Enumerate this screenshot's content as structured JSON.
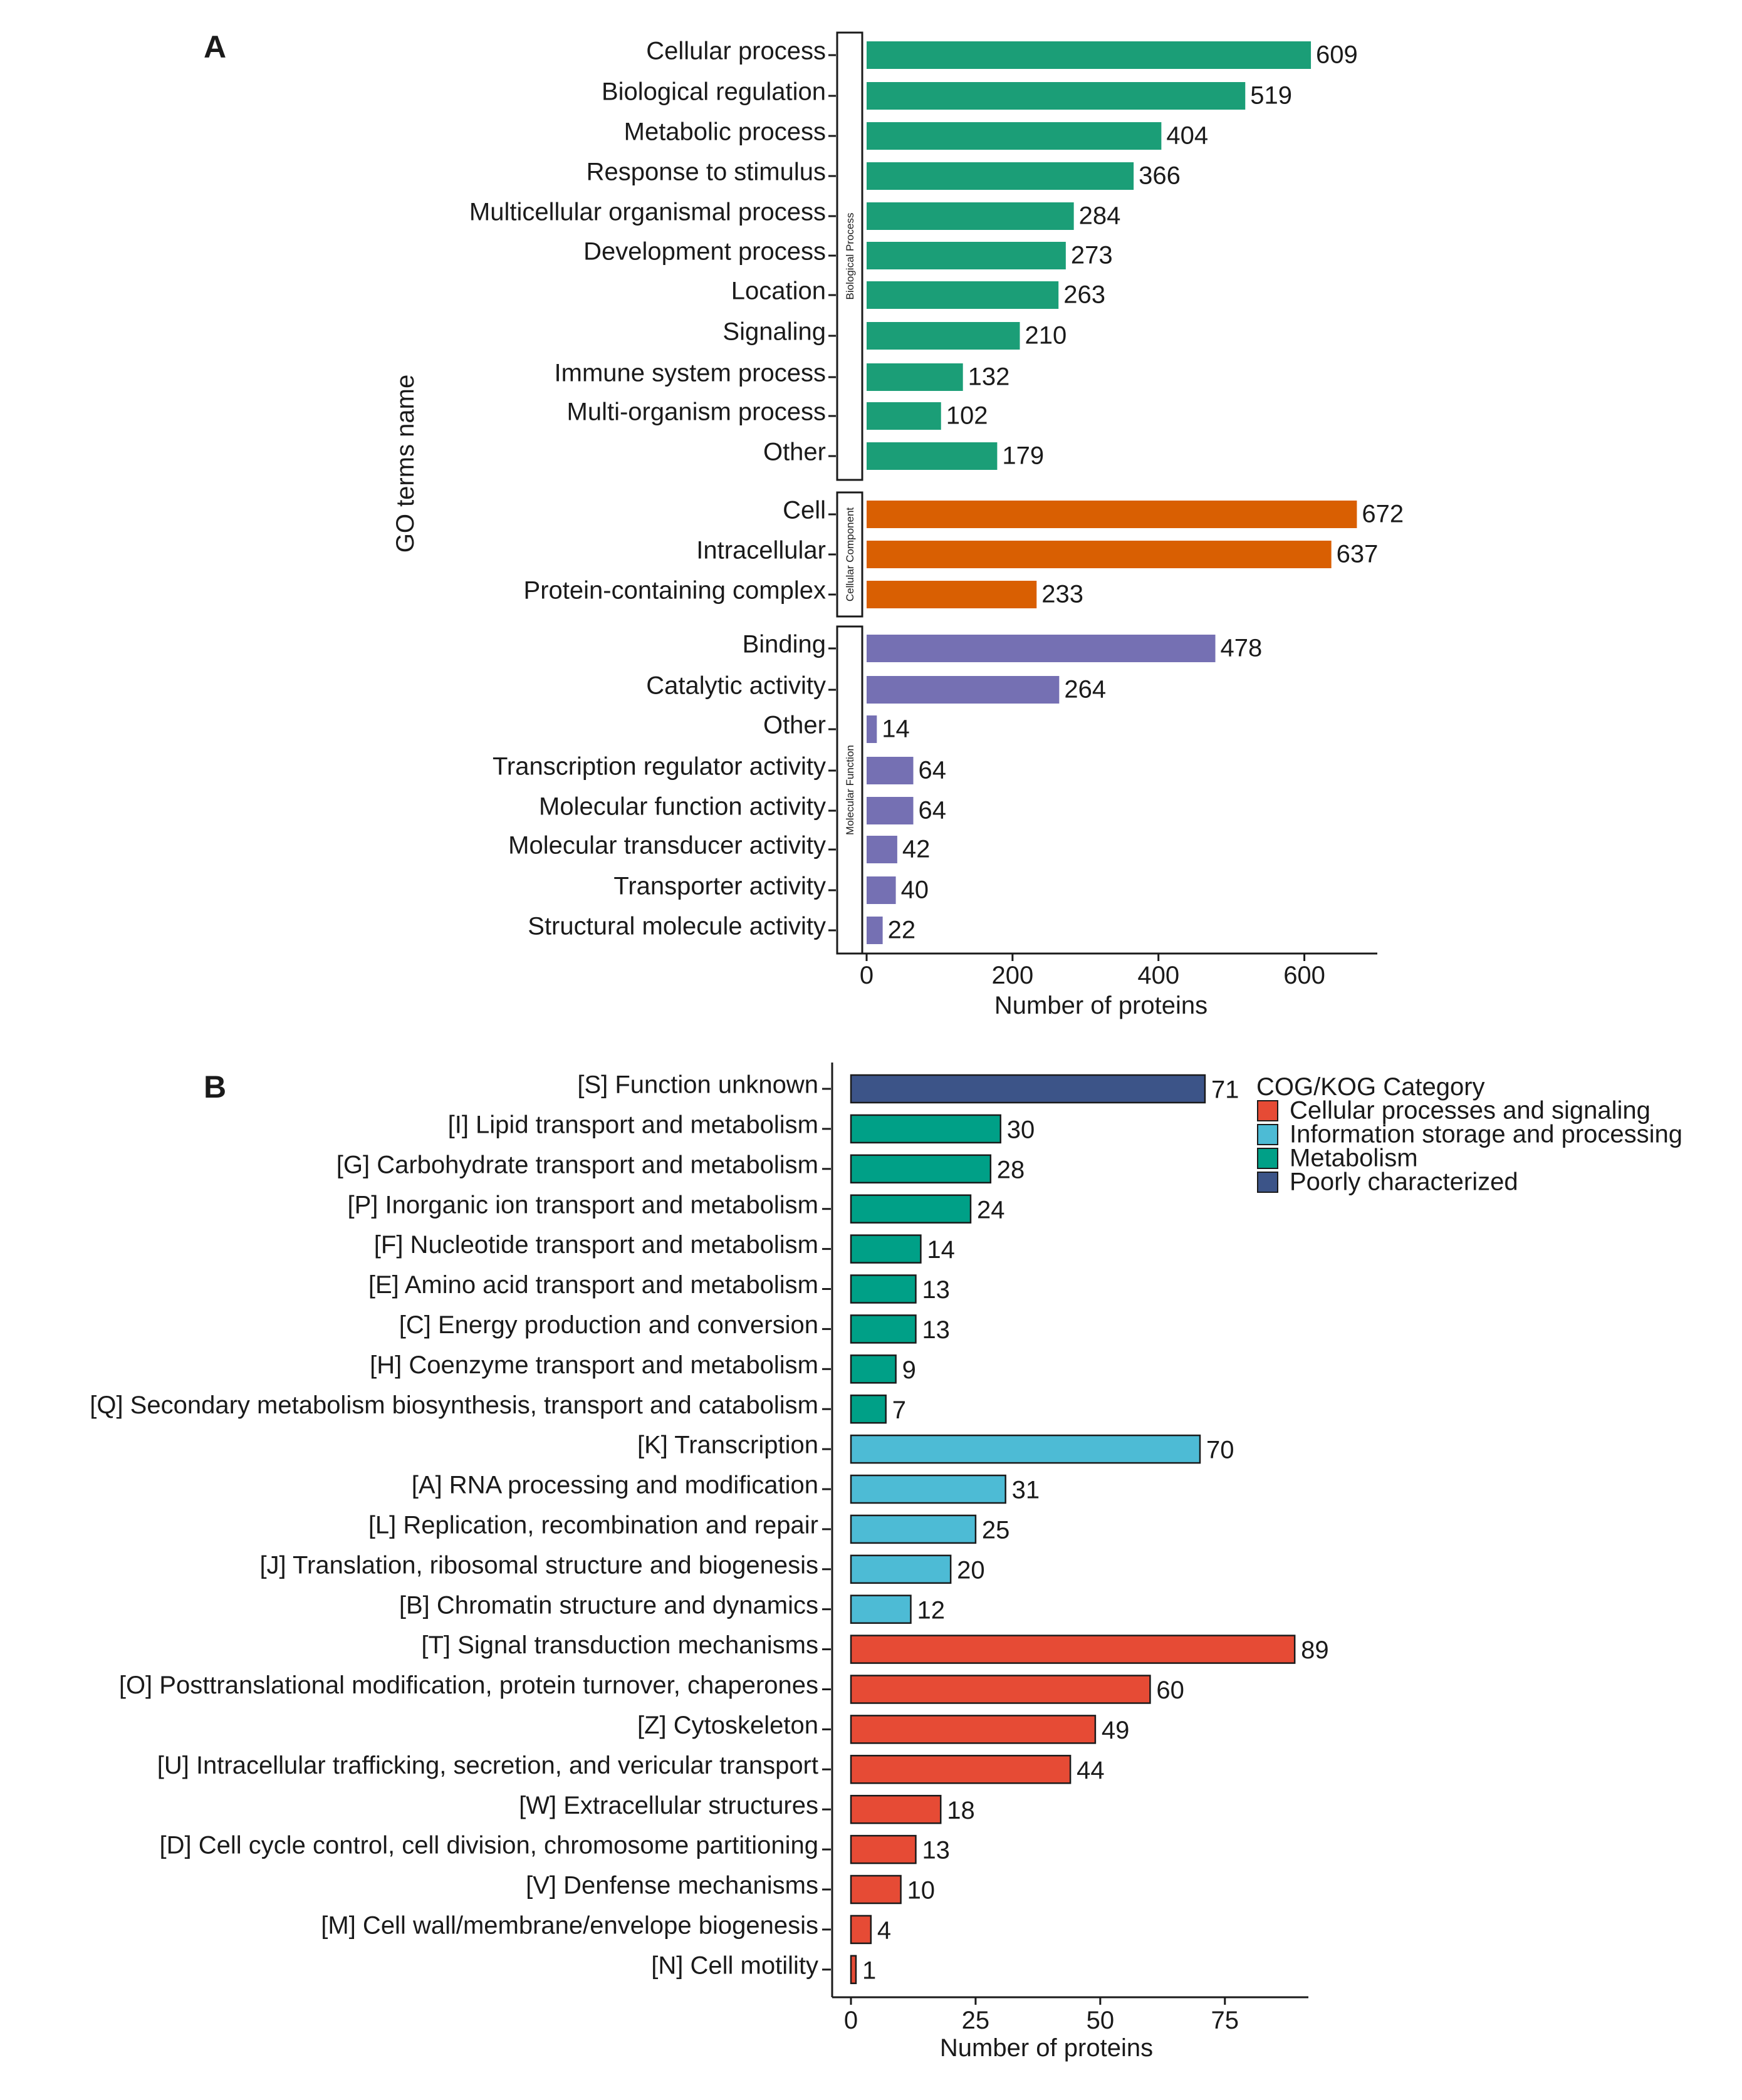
{
  "chart_data": [
    {
      "panel": "A",
      "type": "bar",
      "orientation": "horizontal",
      "xlabel": "Number of proteins",
      "ylabel": "GO terms name",
      "xlim": [
        0,
        700
      ],
      "xticks": [
        0,
        200,
        400,
        600
      ],
      "grid": false,
      "groups": [
        {
          "name": "Biological Process",
          "color": "#1b9e77",
          "categories": [
            "Cellular process",
            "Biological regulation",
            "Metabolic process",
            "Response to stimulus",
            "Multicellular organismal process",
            "Development process",
            "Location",
            "Signaling",
            "Immune system process",
            "Multi-organism process",
            "Other"
          ],
          "values": [
            609,
            519,
            404,
            366,
            284,
            273,
            263,
            210,
            132,
            102,
            179
          ]
        },
        {
          "name": "Cellular Component",
          "color": "#d95f02",
          "categories": [
            "Cell",
            "Intracellular",
            "Protein-containing complex"
          ],
          "values": [
            672,
            637,
            233
          ]
        },
        {
          "name": "Molecular Function",
          "color": "#7570b3",
          "categories": [
            "Binding",
            "Catalytic activity",
            "Other",
            "Transcription regulator activity",
            "Molecular function activity",
            "Molecular transducer activity",
            "Transporter activity",
            "Structural molecule activity"
          ],
          "values": [
            478,
            264,
            14,
            64,
            64,
            42,
            40,
            22
          ]
        }
      ]
    },
    {
      "panel": "B",
      "type": "bar",
      "orientation": "horizontal",
      "xlabel": "Number of proteins",
      "ylabel": "",
      "xlim": [
        0,
        93
      ],
      "xticks": [
        0,
        25,
        50,
        75
      ],
      "grid": false,
      "legend": {
        "title": "COG/KOG Category",
        "position": "top-right",
        "entries": [
          {
            "name": "Cellular processes and signaling",
            "color": "#e64b35"
          },
          {
            "name": "Information storage and processing",
            "color": "#4dbbd5"
          },
          {
            "name": "Metabolism",
            "color": "#00a087"
          },
          {
            "name": "Poorly characterized",
            "color": "#3c5488"
          }
        ]
      },
      "bars": [
        {
          "label": "[S] Function unknown",
          "value": 71,
          "group": "Poorly characterized"
        },
        {
          "label": "[I] Lipid transport and metabolism",
          "value": 30,
          "group": "Metabolism"
        },
        {
          "label": "[G] Carbohydrate transport and metabolism",
          "value": 28,
          "group": "Metabolism"
        },
        {
          "label": "[P] Inorganic ion transport and metabolism",
          "value": 24,
          "group": "Metabolism"
        },
        {
          "label": "[F] Nucleotide transport and metabolism",
          "value": 14,
          "group": "Metabolism"
        },
        {
          "label": "[E] Amino acid transport and metabolism",
          "value": 13,
          "group": "Metabolism"
        },
        {
          "label": "[C] Energy production and conversion",
          "value": 13,
          "group": "Metabolism"
        },
        {
          "label": "[H] Coenzyme transport and metabolism",
          "value": 9,
          "group": "Metabolism"
        },
        {
          "label": "[Q] Secondary metabolism biosynthesis, transport and catabolism",
          "value": 7,
          "group": "Metabolism"
        },
        {
          "label": "[K] Transcription",
          "value": 70,
          "group": "Information storage and processing"
        },
        {
          "label": "[A] RNA processing and modification",
          "value": 31,
          "group": "Information storage and processing"
        },
        {
          "label": "[L] Replication, recombination and repair",
          "value": 25,
          "group": "Information storage and processing"
        },
        {
          "label": "[J] Translation, ribosomal structure and biogenesis",
          "value": 20,
          "group": "Information storage and processing"
        },
        {
          "label": "[B] Chromatin structure and dynamics",
          "value": 12,
          "group": "Information storage and processing"
        },
        {
          "label": "[T] Signal transduction mechanisms",
          "value": 89,
          "group": "Cellular processes and signaling"
        },
        {
          "label": "[O] Posttranslational modification, protein turnover, chaperones",
          "value": 60,
          "group": "Cellular processes and signaling"
        },
        {
          "label": "[Z] Cytoskeleton",
          "value": 49,
          "group": "Cellular processes and signaling"
        },
        {
          "label": "[U] Intracellular trafficking, secretion, and vericular transport",
          "value": 44,
          "group": "Cellular processes and signaling"
        },
        {
          "label": "[W] Extracellular structures",
          "value": 18,
          "group": "Cellular processes and signaling"
        },
        {
          "label": "[D] Cell cycle control, cell division, chromosome partitioning",
          "value": 13,
          "group": "Cellular processes and signaling"
        },
        {
          "label": "[V] Denfense mechanisms",
          "value": 10,
          "group": "Cellular processes and signaling"
        },
        {
          "label": "[M] Cell wall/membrane/envelope biogenesis",
          "value": 4,
          "group": "Cellular processes and signaling"
        },
        {
          "label": "[N] Cell motility",
          "value": 1,
          "group": "Cellular processes and signaling"
        }
      ]
    }
  ]
}
